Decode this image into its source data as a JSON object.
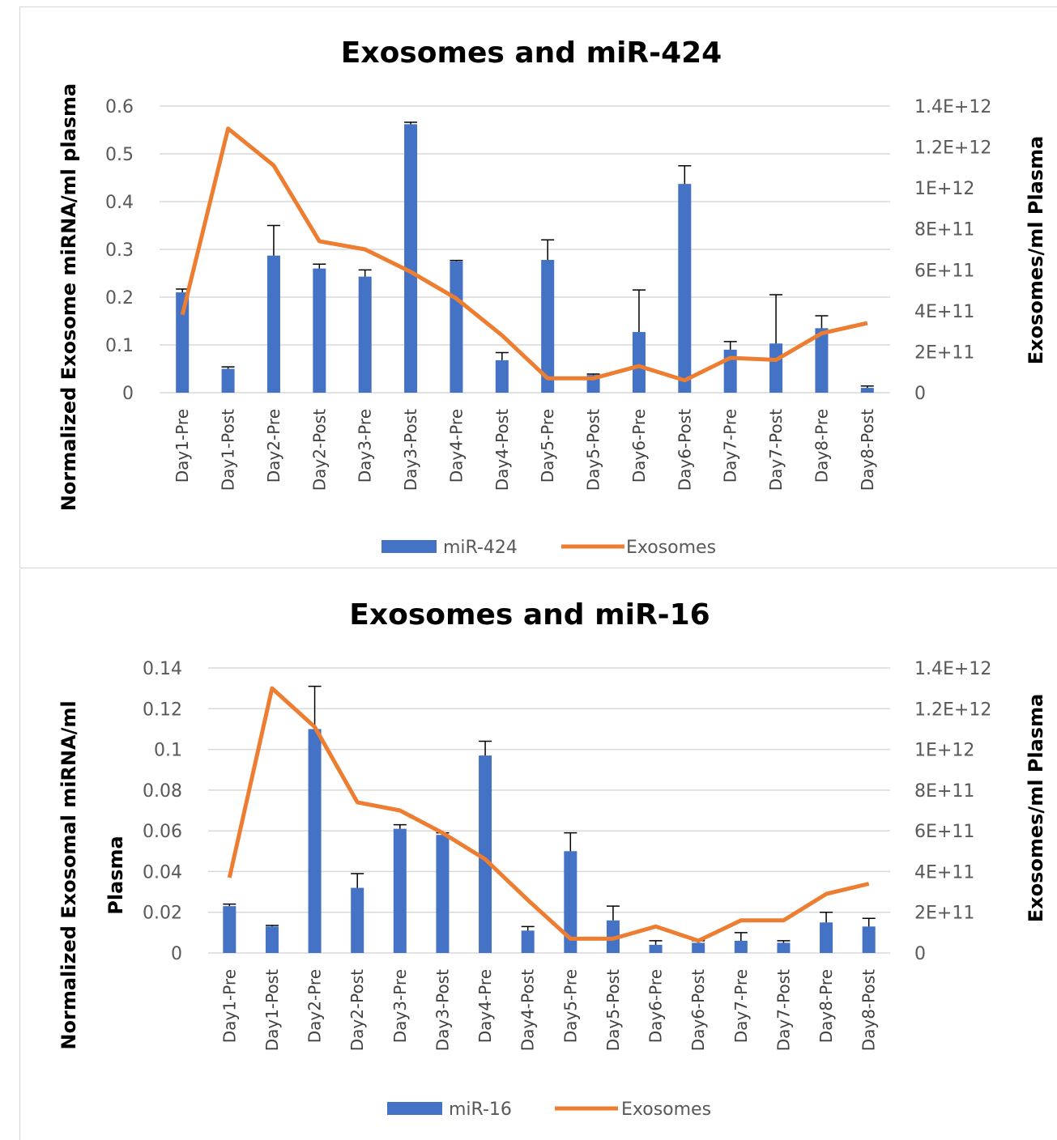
{
  "colors": {
    "bar": "#4472C4",
    "line": "#ED7D31",
    "grid": "#D9D9D9",
    "error": "#000000"
  },
  "chart_data": [
    {
      "type": "bar",
      "title": "Exosomes and miR-424",
      "ylabel": "Normalized Exosome miRNA/ml plasma",
      "y2label": "Exosomes/ml Plasma",
      "xlabel": "",
      "categories": [
        "Day1-Pre",
        "Day1-Post",
        "Day2-Pre",
        "Day2-Post",
        "Day3-Pre",
        "Day3-Post",
        "Day4-Pre",
        "Day4-Post",
        "Day5-Pre",
        "Day5-Post",
        "Day6-Pre",
        "Day6-Post",
        "Day7-Pre",
        "Day7-Post",
        "Day8-Pre",
        "Day8-Post"
      ],
      "ylim": [
        0,
        0.6
      ],
      "yticks": [
        "0",
        "0.1",
        "0.2",
        "0.3",
        "0.4",
        "0.5",
        "0.6"
      ],
      "y2lim": [
        0,
        1400000000000
      ],
      "y2ticks": [
        "0",
        "2E+11",
        "4E+11",
        "6E+11",
        "8E+11",
        "1E+12",
        "1.2E+12",
        "1.4E+12"
      ],
      "grid": true,
      "legend_position": "bottom",
      "series": [
        {
          "name": "miR-424",
          "type": "bar",
          "axis": "left",
          "values": [
            0.21,
            0.05,
            0.287,
            0.26,
            0.243,
            0.562,
            0.275,
            0.068,
            0.278,
            0.037,
            0.127,
            0.437,
            0.09,
            0.103,
            0.135,
            0.01
          ],
          "errors": [
            0.007,
            0.004,
            0.063,
            0.009,
            0.014,
            0.004,
            0.002,
            0.016,
            0.042,
            0.002,
            0.088,
            0.038,
            0.017,
            0.102,
            0.026,
            0.004
          ]
        },
        {
          "name": "Exosomes",
          "type": "line",
          "axis": "right",
          "values": [
            380000000000,
            1290000000000,
            1110000000000,
            740000000000,
            700000000000,
            590000000000,
            460000000000,
            280000000000,
            70000000000,
            70000000000,
            130000000000,
            60000000000,
            170000000000,
            160000000000,
            290000000000,
            340000000000
          ]
        }
      ]
    },
    {
      "type": "bar",
      "title": "Exosomes and miR-16",
      "ylabel": "Normalized Exosomal miRNA/ml Plasma",
      "y2label": "Exosomes/ml Plasma",
      "xlabel": "",
      "categories": [
        "Day1-Pre",
        "Day1-Post",
        "Day2-Pre",
        "Day2-Post",
        "Day3-Pre",
        "Day3-Post",
        "Day4-Pre",
        "Day4-Post",
        "Day5-Pre",
        "Day5-Post",
        "Day6-Pre",
        "Day6-Post",
        "Day7-Pre",
        "Day7-Post",
        "Day8-Pre",
        "Day8-Post"
      ],
      "ylim": [
        0,
        0.14
      ],
      "yticks": [
        "0",
        "0.02",
        "0.04",
        "0.06",
        "0.08",
        "0.1",
        "0.12",
        "0.14"
      ],
      "y2lim": [
        0,
        1400000000000
      ],
      "y2ticks": [
        "0",
        "2E+11",
        "4E+11",
        "6E+11",
        "8E+11",
        "1E+12",
        "1.2E+12",
        "1.4E+12"
      ],
      "grid": true,
      "legend_position": "bottom",
      "series": [
        {
          "name": "miR-16",
          "type": "bar",
          "axis": "left",
          "values": [
            0.023,
            0.013,
            0.11,
            0.032,
            0.061,
            0.058,
            0.097,
            0.011,
            0.05,
            0.016,
            0.004,
            0.005,
            0.006,
            0.005,
            0.015,
            0.013
          ],
          "errors": [
            0.001,
            0.0005,
            0.021,
            0.007,
            0.002,
            0.001,
            0.007,
            0.002,
            0.009,
            0.007,
            0.002,
            0.001,
            0.004,
            0.001,
            0.005,
            0.004
          ]
        },
        {
          "name": "Exosomes",
          "type": "line",
          "axis": "right",
          "values": [
            370000000000,
            1300000000000,
            1110000000000,
            740000000000,
            700000000000,
            590000000000,
            460000000000,
            260000000000,
            70000000000,
            70000000000,
            130000000000,
            60000000000,
            160000000000,
            160000000000,
            290000000000,
            340000000000
          ]
        }
      ]
    }
  ]
}
